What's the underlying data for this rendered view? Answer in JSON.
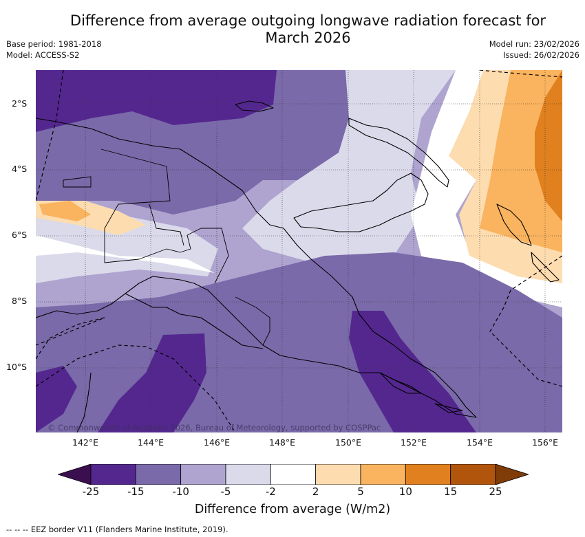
{
  "header": {
    "title_line1": "Difference from average outgoing longwave radiation forecast for",
    "title_line2": "March 2026",
    "base_period": "Base period: 1981-2018",
    "model": "Model: ACCESS-S2",
    "model_run": "Model run: 23/02/2026",
    "issued": "Issued: 26/02/2026"
  },
  "map": {
    "lat_labels": [
      "2°S",
      "4°S",
      "6°S",
      "8°S",
      "10°S"
    ],
    "lon_labels": [
      "142°E",
      "144°E",
      "146°E",
      "148°E",
      "150°E",
      "152°E",
      "154°E",
      "156°E"
    ],
    "credit": "© Commonwealth of Australia 2026, Bureau of Meteorology, supported by COSPPac"
  },
  "legend": {
    "colors": [
      "#3b0f4f",
      "#54278f",
      "#7a6aa9",
      "#aea4cf",
      "#dadaeb",
      "#ffffff",
      "#fddcb0",
      "#fab35e",
      "#e0801e",
      "#b2550c",
      "#7f3b08"
    ],
    "labels": [
      "-25",
      "-15",
      "-10",
      "-5",
      "-2",
      "2",
      "5",
      "10",
      "15",
      "25"
    ],
    "title": "Difference from average (W/m2)"
  },
  "footer": {
    "eez_note": "--  --  -- EEZ border V11 (Flanders Marine Institute, 2019)."
  }
}
